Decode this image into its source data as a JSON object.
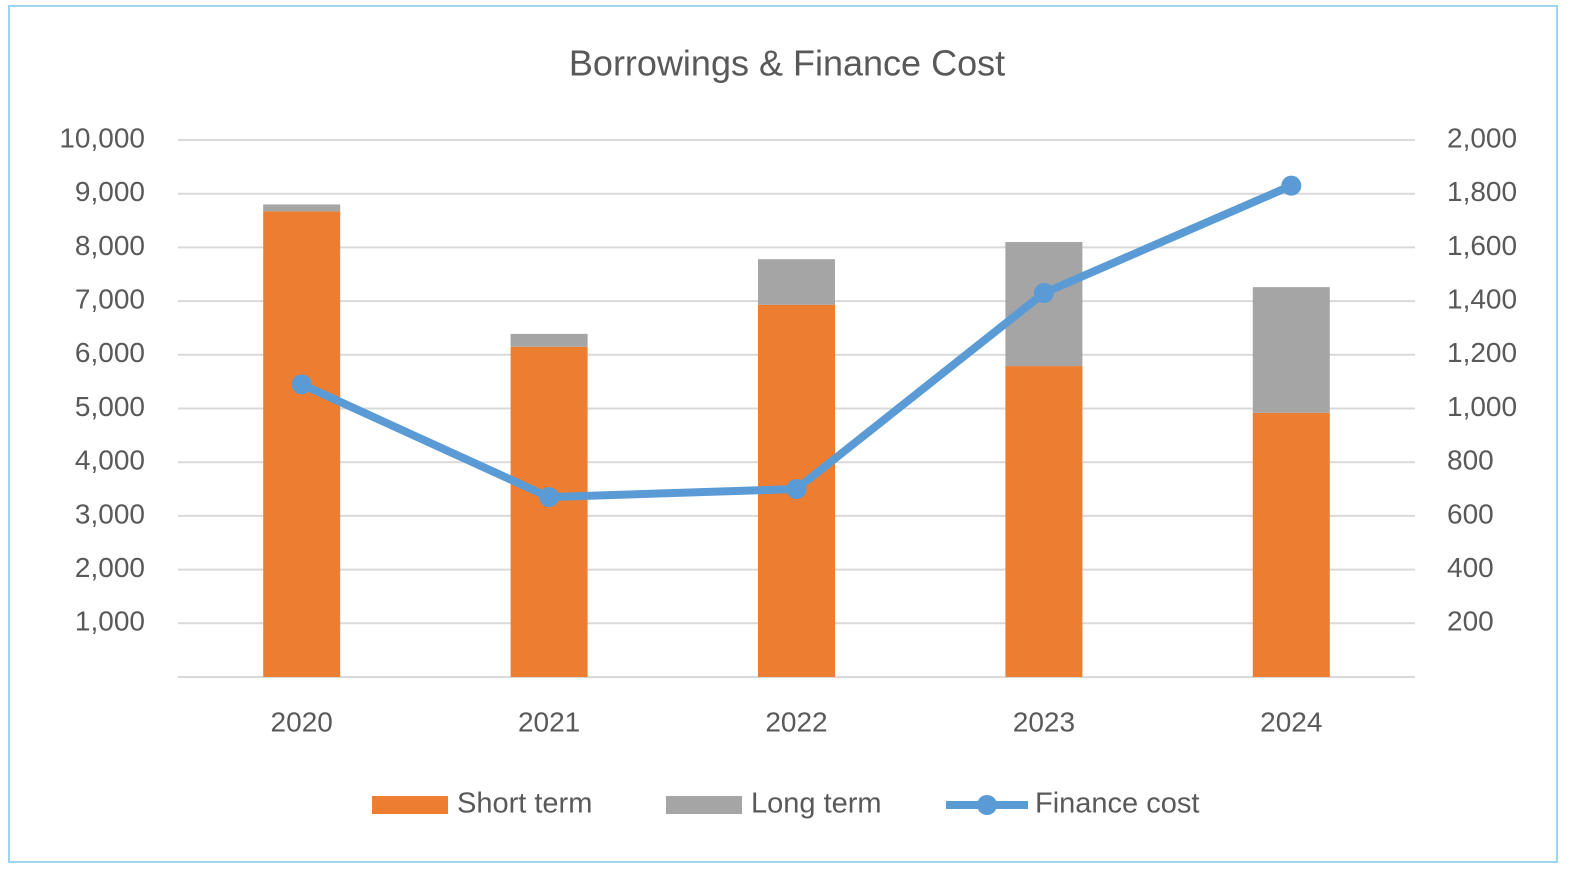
{
  "chart_data": {
    "type": "bar",
    "title": "Borrowings & Finance Cost",
    "categories": [
      "2020",
      "2021",
      "2022",
      "2023",
      "2024"
    ],
    "stacked": true,
    "series": [
      {
        "name": "Short term",
        "color": "#ed7d31",
        "values": [
          8670,
          6150,
          6930,
          5790,
          4920
        ]
      },
      {
        "name": "Long term",
        "color": "#a5a5a5",
        "values": [
          130,
          240,
          850,
          2310,
          2340
        ]
      },
      {
        "name": "Finance cost",
        "color": "#5b9bd5",
        "type": "line",
        "axis": "y2",
        "values": [
          1090,
          670,
          700,
          1430,
          1830
        ]
      }
    ],
    "ylim": [
      0,
      10000
    ],
    "yticks": [
      {
        "value": 1000,
        "label": "1,000"
      },
      {
        "value": 2000,
        "label": "2,000"
      },
      {
        "value": 3000,
        "label": "3,000"
      },
      {
        "value": 4000,
        "label": "4,000"
      },
      {
        "value": 5000,
        "label": "5,000"
      },
      {
        "value": 6000,
        "label": "6,000"
      },
      {
        "value": 7000,
        "label": "7,000"
      },
      {
        "value": 8000,
        "label": "8,000"
      },
      {
        "value": 9000,
        "label": "9,000"
      },
      {
        "value": 10000,
        "label": "10,000"
      }
    ],
    "y2lim": [
      0,
      2000
    ],
    "y2ticks": [
      200,
      400,
      600,
      800,
      {
        "value": 1000,
        "label": "1,000"
      },
      {
        "value": 1200,
        "label": "1,200"
      },
      {
        "value": 1400,
        "label": "1,400"
      },
      {
        "value": 1600,
        "label": "1,600"
      },
      {
        "value": 1800,
        "label": "1,800"
      },
      {
        "value": 2000,
        "label": "2,000"
      }
    ],
    "grid": true,
    "legend": "bottom"
  }
}
